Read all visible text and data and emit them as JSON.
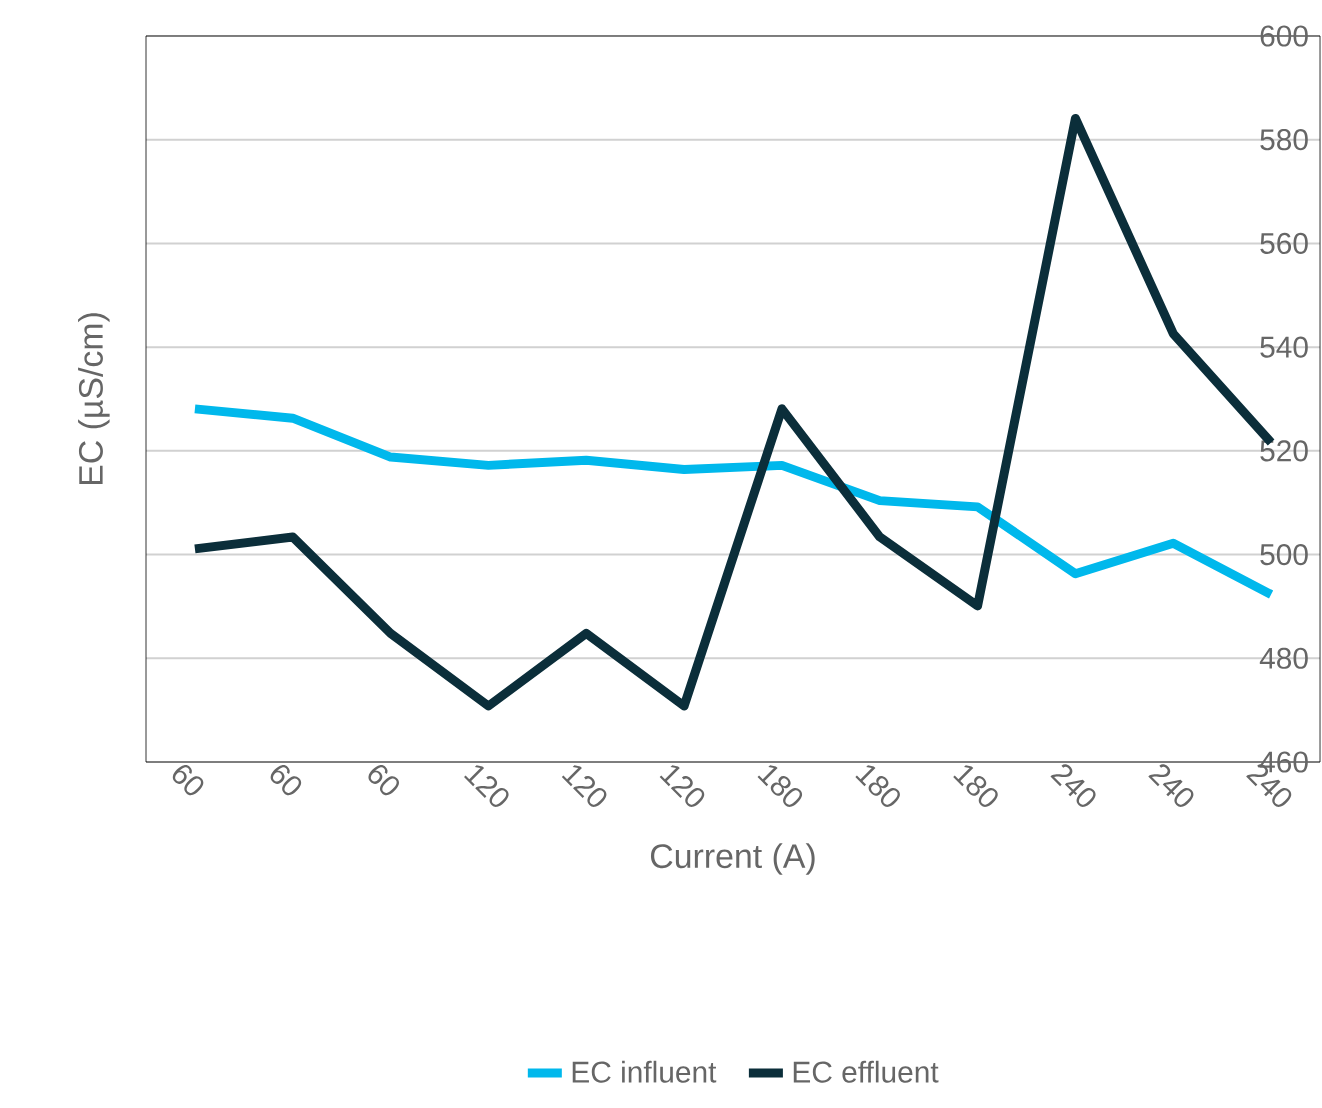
{
  "chart_data": {
    "type": "line",
    "xlabel": "Current (A)",
    "ylabel": "EC (µS/cm)",
    "categories": [
      "60",
      "60",
      "60",
      "120",
      "120",
      "120",
      "180",
      "180",
      "180",
      "240",
      "240",
      "240"
    ],
    "series": [
      {
        "name": "EC influent",
        "color": "#00b8ec",
        "values": [
          528.1,
          526.3,
          518.8,
          517.2,
          518.2,
          516.4,
          517.2,
          510.4,
          509.2,
          496.3,
          502.2,
          492.3
        ]
      },
      {
        "name": "EC effluent",
        "color": "#0b2e3a",
        "values": [
          501.1,
          503.4,
          484.8,
          470.8,
          484.8,
          470.8,
          528.1,
          503.4,
          490.1,
          584.1,
          542.6,
          521.6
        ]
      }
    ],
    "ylim": [
      460,
      600
    ],
    "yticks": [
      460,
      480,
      500,
      520,
      540,
      560,
      580,
      600
    ],
    "grid": "y",
    "legend": "bottom",
    "marker": "none",
    "line_style": "solid"
  }
}
